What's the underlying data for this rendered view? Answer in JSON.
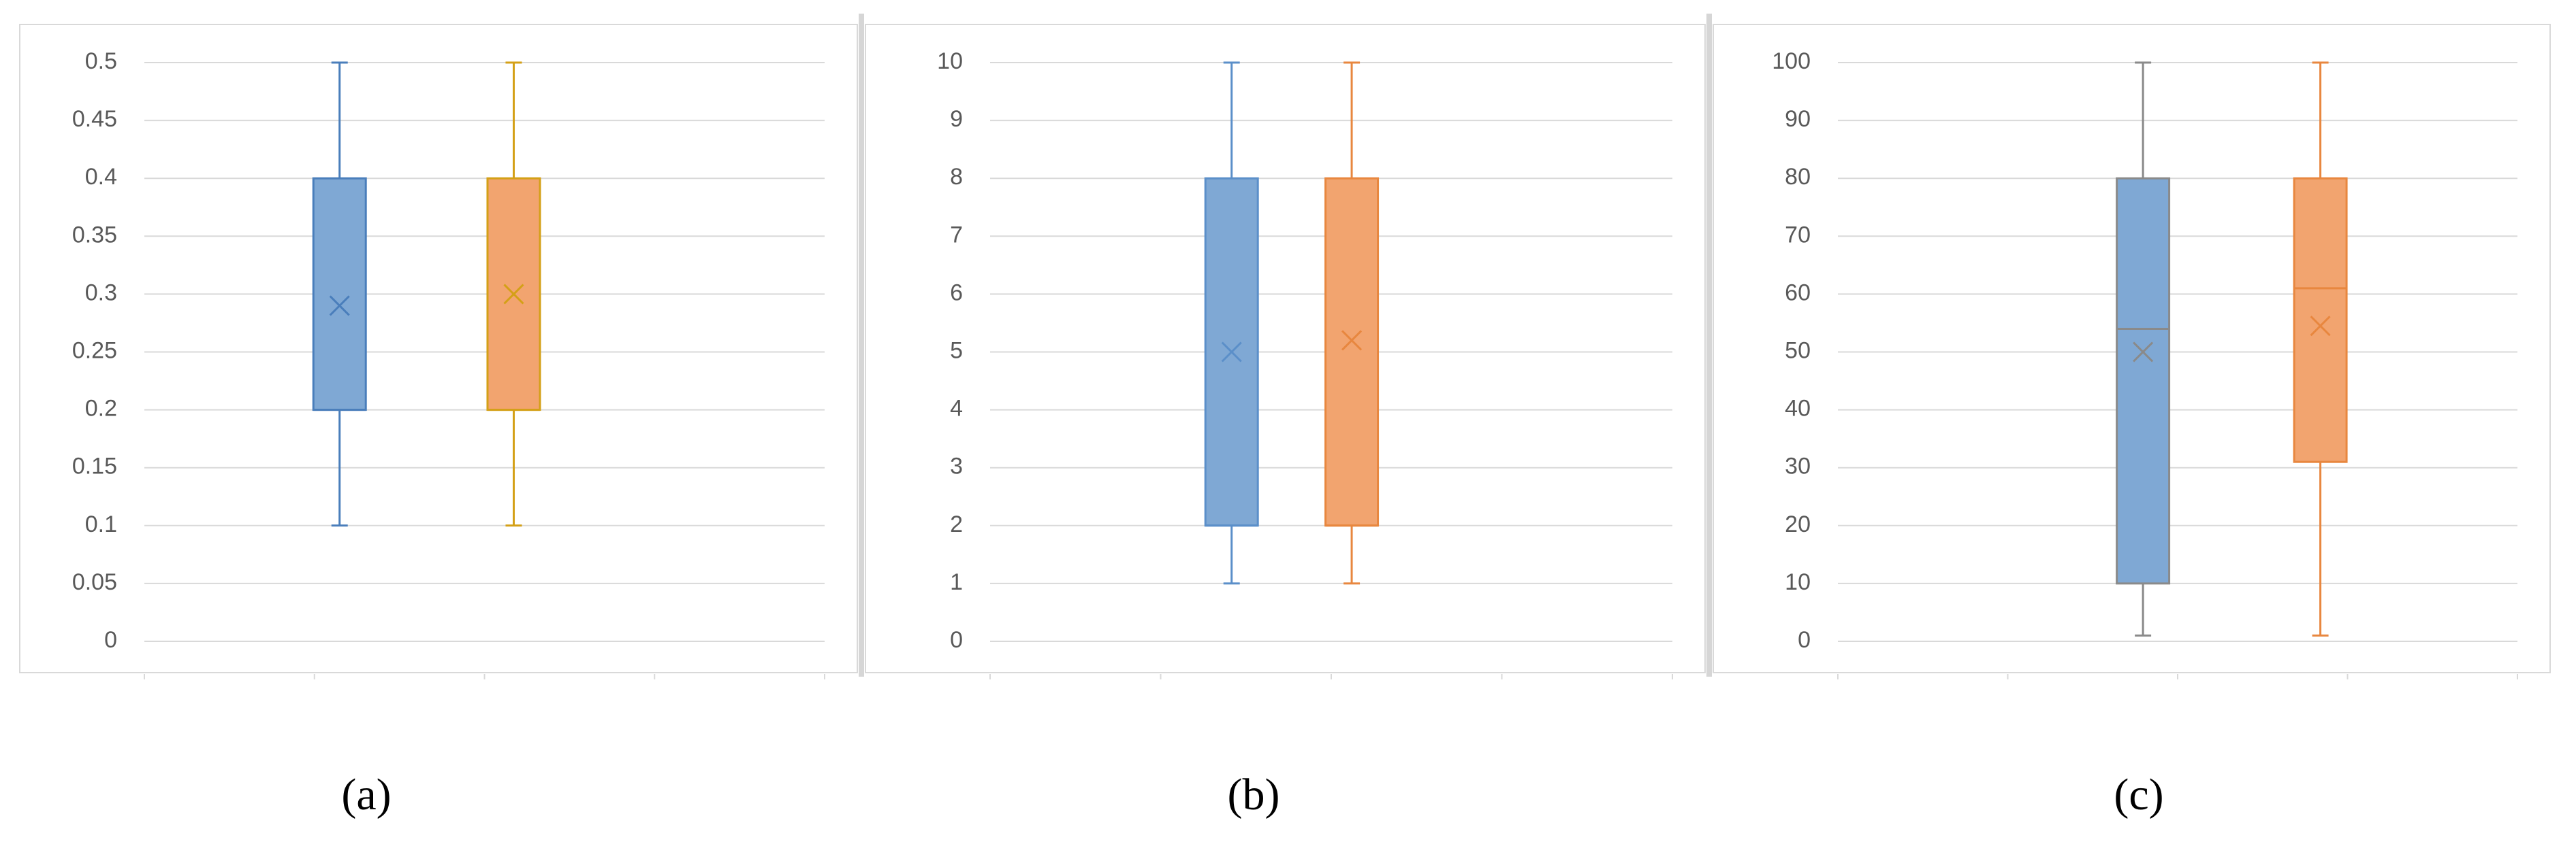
{
  "chart_data": [
    {
      "type": "box",
      "caption": "(a)",
      "ylim": [
        0,
        0.5
      ],
      "yticks": [
        0,
        0.05,
        0.1,
        0.15,
        0.2,
        0.25,
        0.3,
        0.35,
        0.4,
        0.45,
        0.5
      ],
      "grid": true,
      "series": [
        {
          "color": "#7fa8d4",
          "edge_color": "#4a7ebb",
          "min": 0.1,
          "q1": 0.2,
          "median": 0.2,
          "q3": 0.4,
          "max": 0.5,
          "mean": 0.29
        },
        {
          "color": "#f2a46f",
          "edge_color": "#d4a017",
          "min": 0.1,
          "q1": 0.2,
          "median": 0.2,
          "q3": 0.4,
          "max": 0.5,
          "mean": 0.3
        }
      ]
    },
    {
      "type": "box",
      "caption": "(b)",
      "ylim": [
        0,
        10
      ],
      "yticks": [
        0,
        1,
        2,
        3,
        4,
        5,
        6,
        7,
        8,
        9,
        10
      ],
      "grid": true,
      "series": [
        {
          "color": "#7fa8d4",
          "edge_color": "#5b8fc9",
          "min": 1,
          "q1": 2,
          "median": 2,
          "q3": 8,
          "max": 10,
          "mean": 5
        },
        {
          "color": "#f2a46f",
          "edge_color": "#e8873f",
          "min": 1,
          "q1": 2,
          "median": 2,
          "q3": 8,
          "max": 10,
          "mean": 5.2
        }
      ]
    },
    {
      "type": "box",
      "caption": "(c)",
      "ylim": [
        0,
        100
      ],
      "yticks": [
        0,
        10,
        20,
        30,
        40,
        50,
        60,
        70,
        80,
        90,
        100
      ],
      "grid": true,
      "series": [
        {
          "color": "#7fa8d4",
          "edge_color": "#8a8a8a",
          "min": 1,
          "q1": 10,
          "median": 54,
          "q3": 80,
          "max": 100,
          "mean": 50
        },
        {
          "color": "#f2a46f",
          "edge_color": "#e8873f",
          "min": 1,
          "q1": 31,
          "median": 61,
          "q3": 80,
          "max": 100,
          "mean": 54.5
        }
      ]
    }
  ]
}
